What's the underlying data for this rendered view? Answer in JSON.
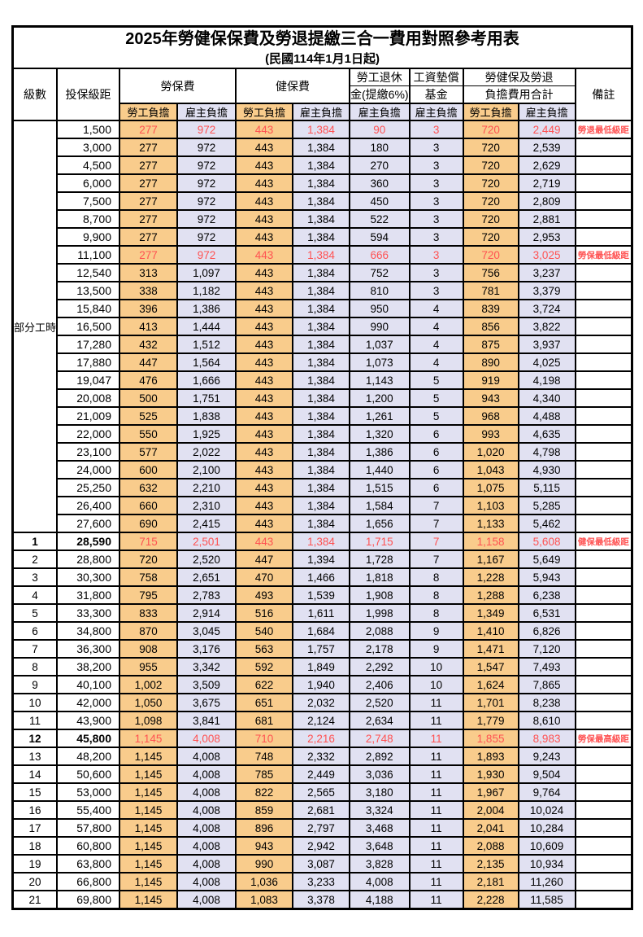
{
  "title": "2025年勞健保保費及勞退提繳三合一費用對照參考用表",
  "subtitle": "(民國114年1月1日起)",
  "header": {
    "level": "級數",
    "bracket": "投保級距",
    "labor_insurance": "勞保費",
    "health_insurance": "健保費",
    "pension_line1": "勞工退休",
    "pension_line2": "金(提繳6%)",
    "wage_fund_line1": "工資墊償",
    "wage_fund_line2": "基金",
    "total_line1": "勞健保及勞退",
    "total_line2": "負擔費用合計",
    "remark": "備註",
    "employee_share": "勞工負擔",
    "employer_share": "雇主負擔"
  },
  "part_time_label": "部分工時",
  "colors": {
    "employee_fill": "#F9CC8C",
    "employer_fill": "#E1E1F2",
    "highlight_text": "#FF5252",
    "border": "#000000"
  },
  "row_columns": [
    "level",
    "bracket",
    "labor_fee_employee",
    "labor_fee_employer",
    "health_fee_employee",
    "health_fee_employer",
    "pension_employer",
    "wage_fund_employer",
    "total_employee",
    "total_employer",
    "remark",
    "flags"
  ],
  "rows": [
    [
      "",
      "1,500",
      "277",
      "972",
      "443",
      "1,384",
      "90",
      "3",
      "720",
      "2,449",
      "勞退最低級距",
      "red"
    ],
    [
      "",
      "3,000",
      "277",
      "972",
      "443",
      "1,384",
      "180",
      "3",
      "720",
      "2,539",
      "",
      ""
    ],
    [
      "",
      "4,500",
      "277",
      "972",
      "443",
      "1,384",
      "270",
      "3",
      "720",
      "2,629",
      "",
      ""
    ],
    [
      "",
      "6,000",
      "277",
      "972",
      "443",
      "1,384",
      "360",
      "3",
      "720",
      "2,719",
      "",
      ""
    ],
    [
      "",
      "7,500",
      "277",
      "972",
      "443",
      "1,384",
      "450",
      "3",
      "720",
      "2,809",
      "",
      ""
    ],
    [
      "",
      "8,700",
      "277",
      "972",
      "443",
      "1,384",
      "522",
      "3",
      "720",
      "2,881",
      "",
      ""
    ],
    [
      "",
      "9,900",
      "277",
      "972",
      "443",
      "1,384",
      "594",
      "3",
      "720",
      "2,953",
      "",
      ""
    ],
    [
      "",
      "11,100",
      "277",
      "972",
      "443",
      "1,384",
      "666",
      "3",
      "720",
      "3,025",
      "勞保最低級距",
      "red"
    ],
    [
      "",
      "12,540",
      "313",
      "1,097",
      "443",
      "1,384",
      "752",
      "3",
      "756",
      "3,237",
      "",
      ""
    ],
    [
      "",
      "13,500",
      "338",
      "1,182",
      "443",
      "1,384",
      "810",
      "3",
      "781",
      "3,379",
      "",
      ""
    ],
    [
      "",
      "15,840",
      "396",
      "1,386",
      "443",
      "1,384",
      "950",
      "4",
      "839",
      "3,724",
      "",
      ""
    ],
    [
      "",
      "16,500",
      "413",
      "1,444",
      "443",
      "1,384",
      "990",
      "4",
      "856",
      "3,822",
      "",
      ""
    ],
    [
      "",
      "17,280",
      "432",
      "1,512",
      "443",
      "1,384",
      "1,037",
      "4",
      "875",
      "3,937",
      "",
      ""
    ],
    [
      "",
      "17,880",
      "447",
      "1,564",
      "443",
      "1,384",
      "1,073",
      "4",
      "890",
      "4,025",
      "",
      ""
    ],
    [
      "",
      "19,047",
      "476",
      "1,666",
      "443",
      "1,384",
      "1,143",
      "5",
      "919",
      "4,198",
      "",
      ""
    ],
    [
      "",
      "20,008",
      "500",
      "1,751",
      "443",
      "1,384",
      "1,200",
      "5",
      "943",
      "4,340",
      "",
      ""
    ],
    [
      "",
      "21,009",
      "525",
      "1,838",
      "443",
      "1,384",
      "1,261",
      "5",
      "968",
      "4,488",
      "",
      ""
    ],
    [
      "",
      "22,000",
      "550",
      "1,925",
      "443",
      "1,384",
      "1,320",
      "6",
      "993",
      "4,635",
      "",
      ""
    ],
    [
      "",
      "23,100",
      "577",
      "2,022",
      "443",
      "1,384",
      "1,386",
      "6",
      "1,020",
      "4,798",
      "",
      ""
    ],
    [
      "",
      "24,000",
      "600",
      "2,100",
      "443",
      "1,384",
      "1,440",
      "6",
      "1,043",
      "4,930",
      "",
      ""
    ],
    [
      "",
      "25,250",
      "632",
      "2,210",
      "443",
      "1,384",
      "1,515",
      "6",
      "1,075",
      "5,115",
      "",
      ""
    ],
    [
      "",
      "26,400",
      "660",
      "2,310",
      "443",
      "1,384",
      "1,584",
      "7",
      "1,103",
      "5,285",
      "",
      ""
    ],
    [
      "",
      "27,600",
      "690",
      "2,415",
      "443",
      "1,384",
      "1,656",
      "7",
      "1,133",
      "5,462",
      "",
      ""
    ],
    [
      "1",
      "28,590",
      "715",
      "2,501",
      "443",
      "1,384",
      "1,715",
      "7",
      "1,158",
      "5,608",
      "健保最低級距",
      "red bold"
    ],
    [
      "2",
      "28,800",
      "720",
      "2,520",
      "447",
      "1,394",
      "1,728",
      "7",
      "1,167",
      "5,649",
      "",
      ""
    ],
    [
      "3",
      "30,300",
      "758",
      "2,651",
      "470",
      "1,466",
      "1,818",
      "8",
      "1,228",
      "5,943",
      "",
      ""
    ],
    [
      "4",
      "31,800",
      "795",
      "2,783",
      "493",
      "1,539",
      "1,908",
      "8",
      "1,288",
      "6,238",
      "",
      ""
    ],
    [
      "5",
      "33,300",
      "833",
      "2,914",
      "516",
      "1,611",
      "1,998",
      "8",
      "1,349",
      "6,531",
      "",
      ""
    ],
    [
      "6",
      "34,800",
      "870",
      "3,045",
      "540",
      "1,684",
      "2,088",
      "9",
      "1,410",
      "6,826",
      "",
      ""
    ],
    [
      "7",
      "36,300",
      "908",
      "3,176",
      "563",
      "1,757",
      "2,178",
      "9",
      "1,471",
      "7,120",
      "",
      ""
    ],
    [
      "8",
      "38,200",
      "955",
      "3,342",
      "592",
      "1,849",
      "2,292",
      "10",
      "1,547",
      "7,493",
      "",
      ""
    ],
    [
      "9",
      "40,100",
      "1,002",
      "3,509",
      "622",
      "1,940",
      "2,406",
      "10",
      "1,624",
      "7,865",
      "",
      ""
    ],
    [
      "10",
      "42,000",
      "1,050",
      "3,675",
      "651",
      "2,032",
      "2,520",
      "11",
      "1,701",
      "8,238",
      "",
      ""
    ],
    [
      "11",
      "43,900",
      "1,098",
      "3,841",
      "681",
      "2,124",
      "2,634",
      "11",
      "1,779",
      "8,610",
      "",
      ""
    ],
    [
      "12",
      "45,800",
      "1,145",
      "4,008",
      "710",
      "2,216",
      "2,748",
      "11",
      "1,855",
      "8,983",
      "勞保最高級距",
      "red bold"
    ],
    [
      "13",
      "48,200",
      "1,145",
      "4,008",
      "748",
      "2,332",
      "2,892",
      "11",
      "1,893",
      "9,243",
      "",
      ""
    ],
    [
      "14",
      "50,600",
      "1,145",
      "4,008",
      "785",
      "2,449",
      "3,036",
      "11",
      "1,930",
      "9,504",
      "",
      ""
    ],
    [
      "15",
      "53,000",
      "1,145",
      "4,008",
      "822",
      "2,565",
      "3,180",
      "11",
      "1,967",
      "9,764",
      "",
      ""
    ],
    [
      "16",
      "55,400",
      "1,145",
      "4,008",
      "859",
      "2,681",
      "3,324",
      "11",
      "2,004",
      "10,024",
      "",
      ""
    ],
    [
      "17",
      "57,800",
      "1,145",
      "4,008",
      "896",
      "2,797",
      "3,468",
      "11",
      "2,041",
      "10,284",
      "",
      ""
    ],
    [
      "18",
      "60,800",
      "1,145",
      "4,008",
      "943",
      "2,942",
      "3,648",
      "11",
      "2,088",
      "10,609",
      "",
      ""
    ],
    [
      "19",
      "63,800",
      "1,145",
      "4,008",
      "990",
      "3,087",
      "3,828",
      "11",
      "2,135",
      "10,934",
      "",
      ""
    ],
    [
      "20",
      "66,800",
      "1,145",
      "4,008",
      "1,036",
      "3,233",
      "4,008",
      "11",
      "2,181",
      "11,260",
      "",
      ""
    ],
    [
      "21",
      "69,800",
      "1,145",
      "4,008",
      "1,083",
      "3,378",
      "4,188",
      "11",
      "2,228",
      "11,585",
      "",
      ""
    ]
  ]
}
